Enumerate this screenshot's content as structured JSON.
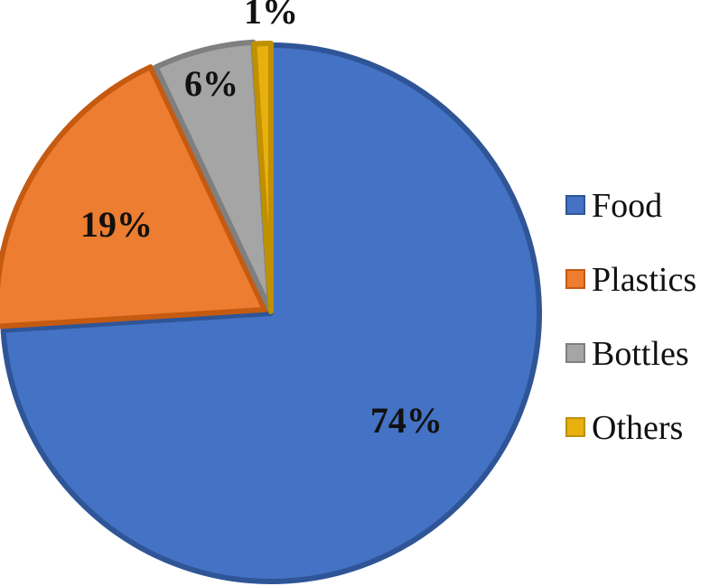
{
  "chart_data": {
    "type": "pie",
    "title": "",
    "slices": [
      {
        "name": "Food",
        "value": 74,
        "label": "74%",
        "color": "#4472C4",
        "border": "#2F5597"
      },
      {
        "name": "Plastics",
        "value": 19,
        "label": "19%",
        "color": "#ED7D31",
        "border": "#C55A11"
      },
      {
        "name": "Bottles",
        "value": 6,
        "label": "6%",
        "color": "#A5A5A5",
        "border": "#7F7F7F"
      },
      {
        "name": "Others",
        "value": 1,
        "label": "1%",
        "color": "#E8B00F",
        "border": "#BF9000"
      }
    ],
    "legend_position": "right"
  }
}
